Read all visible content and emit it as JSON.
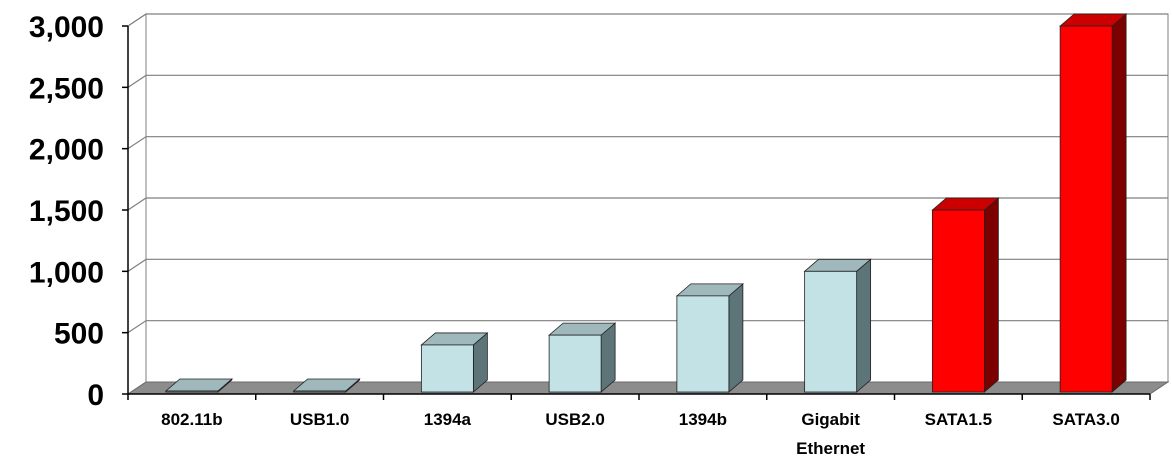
{
  "chart_data": {
    "type": "bar",
    "categories": [
      "802.11b",
      "USB1.0",
      "1394a",
      "USB2.0",
      "1394b",
      "Gigabit Ethernet",
      "SATA1.5",
      "SATA3.0"
    ],
    "category_label_lines": [
      [
        "802.11b"
      ],
      [
        "USB1.0"
      ],
      [
        "1394a"
      ],
      [
        "USB2.0"
      ],
      [
        "1394b"
      ],
      [
        "Gigabit",
        "Ethernet"
      ],
      [
        "SATA1.5"
      ],
      [
        "SATA3.0"
      ]
    ],
    "values": [
      11,
      12,
      400,
      480,
      800,
      1000,
      1500,
      3000
    ],
    "yticks": [
      0,
      500,
      1000,
      1500,
      2000,
      2500,
      3000
    ],
    "ytick_labels": [
      "0",
      "500",
      "1,000",
      "1,500",
      "2,000",
      "2,500",
      "3,000"
    ],
    "ylim": [
      0,
      3000
    ],
    "grid": true,
    "title": "",
    "xlabel": "",
    "ylabel": "",
    "bar_colors": [
      "light-blue",
      "light-blue",
      "light-blue",
      "light-blue",
      "light-blue",
      "light-blue",
      "red",
      "red"
    ]
  },
  "colors": {
    "light-blue": {
      "front": "#c3e2e6",
      "side": "#5d7478",
      "top": "#9fb8bc"
    },
    "red": {
      "front": "#ff0000",
      "side": "#7c0000",
      "top": "#cc0000"
    },
    "floor": "#8c8c8c",
    "grid": "#7f7f7f",
    "axis": "#000000"
  }
}
